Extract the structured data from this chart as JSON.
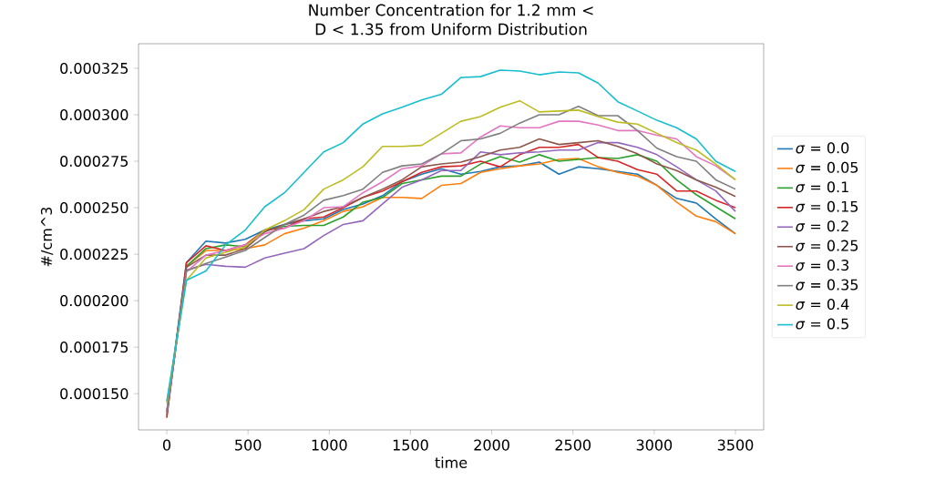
{
  "chart_data": {
    "type": "line",
    "title": "Number Concentration for 1.2 mm < D < 1.35 from Uniform Distribution",
    "xlabel": "time",
    "ylabel": "#/cm^3",
    "x": [
      0,
      121,
      241,
      362,
      483,
      603,
      724,
      845,
      966,
      1086,
      1207,
      1328,
      1448,
      1569,
      1690,
      1810,
      1931,
      2052,
      2172,
      2293,
      2414,
      2534,
      2655,
      2776,
      2897,
      3017,
      3138,
      3259,
      3379,
      3500
    ],
    "xlim": [
      -174,
      3674
    ],
    "xticks": [
      0,
      500,
      1000,
      1500,
      2000,
      2500,
      3000,
      3500
    ],
    "ylim": [
      0.0001305,
      0.0003382
    ],
    "yticks": [
      {
        "value": 0.00015,
        "label": "0.000150"
      },
      {
        "value": 0.000175,
        "label": "0.000175"
      },
      {
        "value": 0.0002,
        "label": "0.000200"
      },
      {
        "value": 0.000225,
        "label": "0.000225"
      },
      {
        "value": 0.00025,
        "label": "0.000250"
      },
      {
        "value": 0.000275,
        "label": "0.000275"
      },
      {
        "value": 0.0003,
        "label": "0.000300"
      },
      {
        "value": 0.000325,
        "label": "0.000325"
      }
    ],
    "grid": false,
    "legend": "right",
    "marker": "none",
    "line_style": "solid",
    "series": [
      {
        "name": "*σ* = 0.0",
        "color": "#1f77b4",
        "values": [
          0.00014,
          0.0002205,
          0.000232,
          0.000231,
          0.000233,
          0.000238,
          0.000241,
          0.000243,
          0.000244,
          0.000249,
          0.000252,
          0.0002565,
          0.000264,
          0.000268,
          0.000271,
          0.000268,
          0.0002695,
          0.000272,
          0.0002725,
          0.0002745,
          0.000268,
          0.000272,
          0.000271,
          0.0002695,
          0.000268,
          0.000262,
          0.000255,
          0.0002525,
          0.000244,
          0.000236
        ]
      },
      {
        "name": "*σ* = 0.05",
        "color": "#ff7f0e",
        "values": [
          0.00014,
          0.0002185,
          0.000227,
          0.000227,
          0.000228,
          0.00023,
          0.000236,
          0.000239,
          0.000243,
          0.000248,
          0.0002505,
          0.0002555,
          0.0002555,
          0.000255,
          0.000262,
          0.000263,
          0.000269,
          0.000271,
          0.0002725,
          0.0002735,
          0.000276,
          0.0002765,
          0.000272,
          0.000269,
          0.000267,
          0.000262,
          0.000253,
          0.0002455,
          0.0002425,
          0.000236
        ]
      },
      {
        "name": "*σ* = 0.1",
        "color": "#2ca02c",
        "values": [
          0.00014,
          0.0002185,
          0.000228,
          0.00023,
          0.000229,
          0.000238,
          0.00024,
          0.0002405,
          0.0002405,
          0.000245,
          0.000253,
          0.0002555,
          0.000263,
          0.000265,
          0.000267,
          0.000267,
          0.0002735,
          0.0002775,
          0.0002745,
          0.0002785,
          0.000275,
          0.000276,
          0.000277,
          0.0002765,
          0.0002785,
          0.000275,
          0.000265,
          0.000257,
          0.0002505,
          0.000244
        ]
      },
      {
        "name": "*σ* = 0.15",
        "color": "#d62728",
        "values": [
          0.000137,
          0.0002205,
          0.0002295,
          0.000227,
          0.00023,
          0.000238,
          0.000239,
          0.000244,
          0.000245,
          0.00025,
          0.0002555,
          0.000259,
          0.000264,
          0.000269,
          0.000272,
          0.0002725,
          0.000275,
          0.000272,
          0.0002785,
          0.0002825,
          0.0002825,
          0.000284,
          0.000277,
          0.000275,
          0.0002705,
          0.000268,
          0.000259,
          0.000259,
          0.000254,
          0.00025
        ]
      },
      {
        "name": "*σ* = 0.2",
        "color": "#9467bd",
        "values": [
          0.00014,
          0.0002165,
          0.0002195,
          0.0002185,
          0.000218,
          0.000223,
          0.0002255,
          0.000228,
          0.000235,
          0.000241,
          0.000243,
          0.000252,
          0.000261,
          0.000265,
          0.00027,
          0.00027,
          0.00028,
          0.0002785,
          0.0002795,
          0.00028,
          0.000281,
          0.000281,
          0.000285,
          0.000285,
          0.0002825,
          0.0002785,
          0.000272,
          0.000265,
          0.000259,
          0.000248
        ]
      },
      {
        "name": "*σ* = 0.25",
        "color": "#8c564b",
        "values": [
          0.000138,
          0.000218,
          0.0002245,
          0.0002245,
          0.000228,
          0.000237,
          0.000241,
          0.000244,
          0.000248,
          0.0002505,
          0.0002555,
          0.00026,
          0.000265,
          0.000272,
          0.0002735,
          0.0002745,
          0.0002775,
          0.000281,
          0.0002825,
          0.000287,
          0.000284,
          0.000285,
          0.000286,
          0.000283,
          0.000279,
          0.0002735,
          0.00027,
          0.000265,
          0.000261,
          0.000256
        ]
      },
      {
        "name": "*σ* = 0.3",
        "color": "#e377c2",
        "values": [
          0.00014,
          0.0002155,
          0.0002245,
          0.000227,
          0.00023,
          0.000236,
          0.000239,
          0.000243,
          0.00025,
          0.0002505,
          0.000258,
          0.000264,
          0.000271,
          0.0002725,
          0.000279,
          0.0002795,
          0.000288,
          0.000294,
          0.000293,
          0.000293,
          0.0002965,
          0.0002965,
          0.0002945,
          0.0002915,
          0.0002915,
          0.000289,
          0.000287,
          0.0002775,
          0.0002725,
          0.000265
        ]
      },
      {
        "name": "*σ* = 0.35",
        "color": "#7f7f7f",
        "values": [
          0.00014,
          0.000216,
          0.00022,
          0.0002235,
          0.000227,
          0.000234,
          0.000241,
          0.000246,
          0.000254,
          0.0002565,
          0.00026,
          0.000269,
          0.0002725,
          0.0002735,
          0.000279,
          0.000286,
          0.000287,
          0.00029,
          0.0002955,
          0.0003,
          0.0003,
          0.0003045,
          0.0002995,
          0.0002995,
          0.0002915,
          0.000282,
          0.0002775,
          0.000275,
          0.000265,
          0.00026
        ]
      },
      {
        "name": "*σ* = 0.4",
        "color": "#bcbd22",
        "values": [
          0.000145,
          0.000211,
          0.000223,
          0.000226,
          0.000229,
          0.000238,
          0.000243,
          0.000249,
          0.00026,
          0.000265,
          0.000272,
          0.000283,
          0.000283,
          0.0002835,
          0.00029,
          0.0002965,
          0.000299,
          0.000304,
          0.0003075,
          0.0003015,
          0.000302,
          0.0003025,
          0.000299,
          0.000296,
          0.000295,
          0.00029,
          0.000285,
          0.000281,
          0.0002735,
          0.000265
        ]
      },
      {
        "name": "*σ* = 0.5",
        "color": "#17becf",
        "values": [
          0.000146,
          0.000211,
          0.000216,
          0.00023,
          0.000238,
          0.0002505,
          0.000258,
          0.000269,
          0.00028,
          0.000285,
          0.000295,
          0.0003005,
          0.000304,
          0.000308,
          0.000311,
          0.00032,
          0.0003205,
          0.000324,
          0.0003235,
          0.0003215,
          0.000323,
          0.0003225,
          0.000317,
          0.000307,
          0.000302,
          0.000297,
          0.000293,
          0.000287,
          0.000275,
          0.0002695
        ]
      }
    ]
  }
}
